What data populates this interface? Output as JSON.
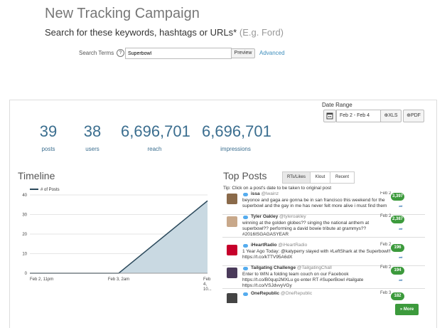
{
  "page": {
    "title": "New Tracking Campaign",
    "subtitle": "Search for these keywords, hashtags or URLs*",
    "subtitle_example": "(E.g. Ford)"
  },
  "search": {
    "label": "Search Terms",
    "help_icon": "?",
    "value": "Superbowl",
    "preview_label": "Preview",
    "advanced_label": "Advanced"
  },
  "date_range": {
    "label": "Date Range",
    "value": "Feb 2 - Feb 4",
    "xls_label": "XLS",
    "pdf_label": "PDF"
  },
  "stats": [
    {
      "value": "39",
      "label": "posts"
    },
    {
      "value": "38",
      "label": "users"
    },
    {
      "value": "6,696,701",
      "label": "reach"
    },
    {
      "value": "6,696,701",
      "label": "impressions"
    }
  ],
  "timeline": {
    "title": "Timeline",
    "legend": "# of Posts",
    "y_ticks": [
      "40",
      "30",
      "20",
      "10",
      "0"
    ],
    "x_labels": [
      "Feb 2, 11pm",
      "Feb 3, 2am"
    ],
    "x_label_last": [
      "Feb",
      "4,",
      "10..."
    ]
  },
  "chart_data": {
    "type": "area",
    "x": [
      "Feb 2, 11pm",
      "Feb 3, 2am",
      "Feb 4, 10..."
    ],
    "series": [
      {
        "name": "# of Posts",
        "values": [
          0,
          0,
          37
        ]
      }
    ],
    "ylim": [
      0,
      40
    ],
    "grid": true,
    "colors": {
      "fill": "#c9d9e2",
      "line": "#2c4a5c"
    }
  },
  "top_posts": {
    "title": "Top Posts",
    "tabs": [
      "RTs/Likes",
      "Klout",
      "Recent"
    ],
    "active_tab": "RTs/Likes",
    "tip": "Tip: Click on a post's date to be taken to original post",
    "items": [
      {
        "name": "issa",
        "handle": "@lwainz",
        "date": "Feb 2",
        "count": "3,397",
        "text": "beyonce and gaga are gonna be in san francisco this weekend for the superbowl and the gay in me has never felt more alive i must find them",
        "avatar_color": "#8a6a4a"
      },
      {
        "name": "Tyler Oakley",
        "handle": "@tyleroakley",
        "date": "Feb 2",
        "count": "2,387",
        "text": "winning at the golden globes?? singing the national anthem at superbowl?? performing a david bowie tribute at grammys?? #2016ISGAGASYEAR",
        "avatar_color": "#c8a88a"
      },
      {
        "name": "iHeartRadio",
        "handle": "@iHeartRadio",
        "date": "Feb 2",
        "count": "196",
        "text": "1 Year Ago Today: @katyperry slayed with #LeftShark at the Superbowl!! https://t.co/kTTV95A6dX",
        "avatar_color": "#c6002b"
      },
      {
        "name": "Tailgating Challenge",
        "handle": "@TailgatingChall",
        "date": "Feb 2",
        "count": "194",
        "text": "Enter to WIN a folding team couch on our Facebook https://t.co/B0qup2MXLu go enter RT #SuperBowl #tailgate https://t.co/VSJdvvyVGy",
        "avatar_color": "#4a3a5a"
      },
      {
        "name": "OneRepublic",
        "handle": "@OneRepublic",
        "date": "Feb 3",
        "count": "182",
        "text": "",
        "avatar_color": "#444444"
      }
    ],
    "more_label": "» More"
  },
  "colors": {
    "accent": "#3b6e8f",
    "link": "#3c8dbc",
    "badge": "#3c9a3c"
  }
}
